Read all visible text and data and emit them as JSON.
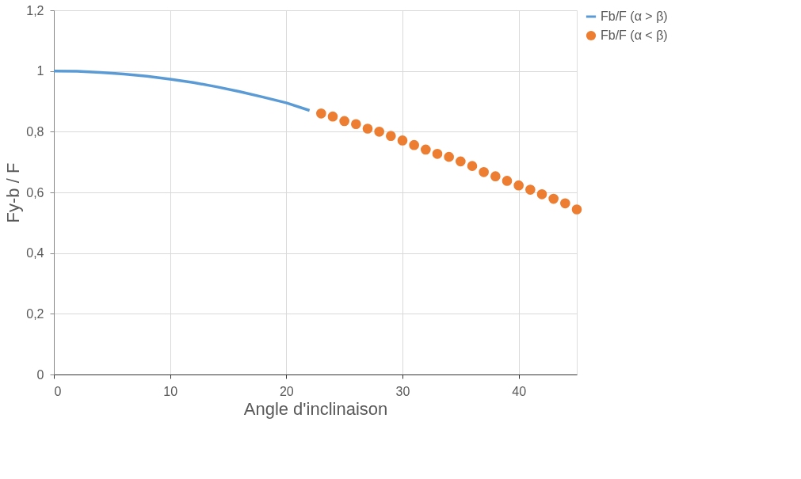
{
  "chart_data": {
    "type": "line",
    "xlabel": "Angle d'inclinaison",
    "ylabel": "Fy-b / F",
    "xlim": [
      0,
      45
    ],
    "xticks": [
      0,
      10,
      20,
      30,
      40
    ],
    "ylim": [
      0,
      1.2
    ],
    "yticks": [
      0,
      {
        "value": 0.2,
        "label": "0,2"
      },
      {
        "value": 0.4,
        "label": "0,4"
      },
      {
        "value": 0.6,
        "label": "0,6"
      },
      {
        "value": 0.8,
        "label": "0,8"
      },
      1,
      {
        "value": 1.2,
        "label": "1,2"
      }
    ],
    "grid": true,
    "legend": "right",
    "series": [
      {
        "name": "Fb/F (α > β)",
        "color": "#5b9bd5",
        "x": [
          0,
          2,
          4,
          6,
          8,
          10,
          12,
          14,
          16,
          18,
          20,
          22
        ],
        "values": [
          1.0,
          0.999,
          0.995,
          0.99,
          0.983,
          0.973,
          0.962,
          0.948,
          0.932,
          0.914,
          0.895,
          0.87
        ]
      },
      {
        "name": "Fb/F (α < β)",
        "type": "scatter",
        "marker": "circle",
        "color": "#ed7d31",
        "x": [
          23,
          24,
          25,
          26,
          27,
          28,
          29,
          30,
          31,
          32,
          33,
          34,
          35,
          36,
          37,
          38,
          39,
          40,
          41,
          42,
          43,
          44,
          45
        ],
        "values": [
          0.86,
          0.85,
          0.835,
          0.825,
          0.81,
          0.8,
          0.786,
          0.771,
          0.756,
          0.741,
          0.727,
          0.717,
          0.702,
          0.687,
          0.667,
          0.653,
          0.638,
          0.623,
          0.609,
          0.594,
          0.579,
          0.564,
          0.544
        ]
      }
    ]
  }
}
